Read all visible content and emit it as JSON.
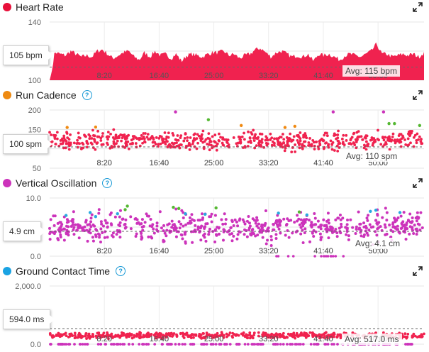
{
  "colors": {
    "hr": "#f0224f",
    "cadence_red": "#f0224f",
    "cadence_orange": "#f08a12",
    "cadence_purple": "#cc33bb",
    "cadence_green": "#55b832",
    "vo_magenta": "#cc33bb",
    "vo_blue": "#2aa9e0",
    "vo_green": "#55b832",
    "gct": "#f0224f",
    "gct_purple": "#cc33bb"
  },
  "x_ticks": [
    "8:20",
    "16:40",
    "25:00",
    "33:20",
    "41:40",
    "50:00"
  ],
  "chart_data": [
    {
      "type": "area",
      "title": "Heart Rate",
      "ylim": [
        100,
        140
      ],
      "y_ticks": [
        "140",
        "120",
        "100"
      ],
      "xlim_seconds": [
        0,
        3420
      ],
      "callout": "105 bpm",
      "avg_label": "Avg: 115 bpm",
      "avg": 115,
      "series": [
        {
          "values": [
            110,
            119,
            118,
            117,
            120,
            118,
            116,
            117,
            116,
            120,
            121,
            118,
            115,
            117,
            119,
            120,
            116,
            114,
            119,
            116,
            120,
            117,
            118,
            115,
            118,
            113,
            117,
            118,
            117,
            116,
            118,
            119,
            119,
            120,
            117,
            118,
            115,
            117,
            118,
            121,
            122,
            119,
            116,
            119,
            120,
            118,
            116,
            117,
            116,
            118,
            113,
            118,
            117,
            118,
            116,
            114,
            117,
            118,
            117,
            116,
            118,
            120,
            125,
            118,
            118,
            116,
            117,
            118,
            117,
            118,
            116,
            119
          ]
        }
      ]
    },
    {
      "type": "scatter",
      "title": "Run Cadence",
      "ylim": [
        50,
        200
      ],
      "y_ticks": [
        "200",
        "150",
        "100",
        "50"
      ],
      "callout": "100 spm",
      "avg_label": "Avg: 110 spm",
      "avg": 110,
      "note": "dense cloud of points centred near 115-125 spm; a few outliers in orange, purple and green",
      "highlights": [
        {
          "t": 160,
          "v": 155,
          "c": "orange"
        },
        {
          "t": 420,
          "v": 156,
          "c": "orange"
        },
        {
          "t": 1150,
          "v": 195,
          "c": "purple"
        },
        {
          "t": 1450,
          "v": 175,
          "c": "green"
        },
        {
          "t": 1750,
          "v": 160,
          "c": "orange"
        },
        {
          "t": 2150,
          "v": 155,
          "c": "orange"
        },
        {
          "t": 2240,
          "v": 158,
          "c": "orange"
        },
        {
          "t": 2590,
          "v": 195,
          "c": "purple"
        },
        {
          "t": 3050,
          "v": 195,
          "c": "purple"
        },
        {
          "t": 3100,
          "v": 165,
          "c": "green"
        },
        {
          "t": 3150,
          "v": 165,
          "c": "green"
        },
        {
          "t": 3380,
          "v": 160,
          "c": "green"
        }
      ]
    },
    {
      "type": "scatter",
      "title": "Vertical Oscillation",
      "ylim": [
        0,
        10
      ],
      "y_ticks": [
        "10.0",
        "5.0",
        "0.0"
      ],
      "callout": "4.9 cm",
      "avg_label": "Avg: 4.1 cm",
      "avg": 4.1,
      "note": "dense band of points near 5 cm; blue and green points above 6 cm",
      "highlights": [
        {
          "t": 150,
          "v": 7.0,
          "c": "blue"
        },
        {
          "t": 370,
          "v": 7.5,
          "c": "blue"
        },
        {
          "t": 420,
          "v": 6.8,
          "c": "blue"
        },
        {
          "t": 620,
          "v": 7.3,
          "c": "blue"
        },
        {
          "t": 690,
          "v": 8.0,
          "c": "green"
        },
        {
          "t": 710,
          "v": 8.6,
          "c": "green"
        },
        {
          "t": 1130,
          "v": 8.4,
          "c": "green"
        },
        {
          "t": 1180,
          "v": 8.2,
          "c": "green"
        },
        {
          "t": 1240,
          "v": 7.3,
          "c": "blue"
        },
        {
          "t": 1420,
          "v": 7.2,
          "c": "blue"
        },
        {
          "t": 1520,
          "v": 8.3,
          "c": "green"
        },
        {
          "t": 2090,
          "v": 7.4,
          "c": "blue"
        },
        {
          "t": 2280,
          "v": 7.6,
          "c": "green"
        },
        {
          "t": 2350,
          "v": 7.1,
          "c": "blue"
        },
        {
          "t": 2930,
          "v": 7.7,
          "c": "blue"
        },
        {
          "t": 2980,
          "v": 7.9,
          "c": "blue"
        },
        {
          "t": 3200,
          "v": 7.5,
          "c": "blue"
        }
      ]
    },
    {
      "type": "scatter",
      "title": "Ground Contact Time",
      "ylim": [
        0,
        2000
      ],
      "y_ticks": [
        "2,000.0",
        "0.0"
      ],
      "callout": "594.0 ms",
      "avg_label": "Avg: 517.0 ms",
      "avg": 517,
      "note": "points mostly near 300 ms; purple points along 0"
    }
  ],
  "ui": {
    "hr_title": "Heart Rate",
    "cad_title": "Run Cadence",
    "vo_title": "Vertical Oscillation",
    "gct_title": "Ground Contact Time",
    "help_glyph": "?"
  }
}
